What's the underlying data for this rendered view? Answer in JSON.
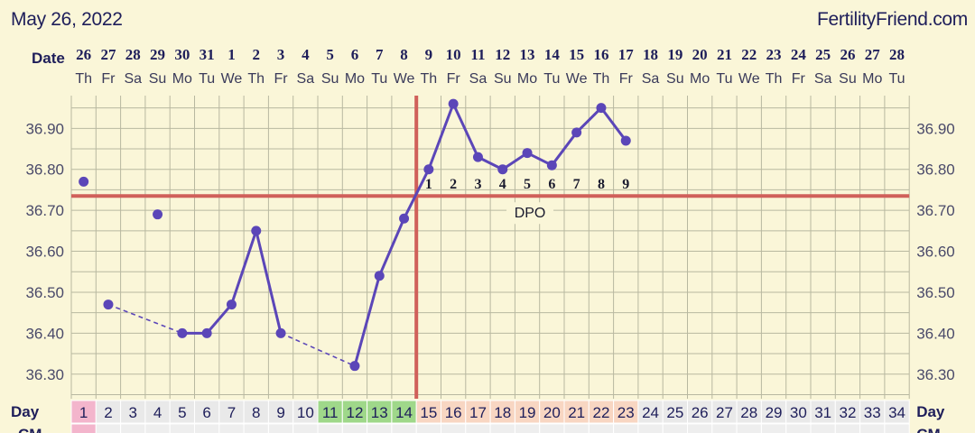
{
  "header": {
    "date": "May 26, 2022",
    "brand": "FertilityFriend.com"
  },
  "chart_data": {
    "type": "line",
    "row_labels": {
      "date": "Date",
      "day": "Day",
      "bottom": "CM"
    },
    "dates": [
      "26",
      "27",
      "28",
      "29",
      "30",
      "31",
      "1",
      "2",
      "3",
      "4",
      "5",
      "6",
      "7",
      "8",
      "9",
      "10",
      "11",
      "12",
      "13",
      "14",
      "15",
      "16",
      "17",
      "18",
      "19",
      "20",
      "21",
      "22",
      "23",
      "24",
      "25",
      "26",
      "27",
      "28"
    ],
    "weekdays": [
      "Th",
      "Fr",
      "Sa",
      "Su",
      "Mo",
      "Tu",
      "We",
      "Th",
      "Fr",
      "Sa",
      "Su",
      "Mo",
      "Tu",
      "We",
      "Th",
      "Fr",
      "Sa",
      "Su",
      "Mo",
      "Tu",
      "We",
      "Th",
      "Fr",
      "Sa",
      "Su",
      "Mo",
      "Tu",
      "We",
      "Th",
      "Fr",
      "Sa",
      "Su",
      "Mo",
      "Tu"
    ],
    "cycle_days": [
      1,
      2,
      3,
      4,
      5,
      6,
      7,
      8,
      9,
      10,
      11,
      12,
      13,
      14,
      15,
      16,
      17,
      18,
      19,
      20,
      21,
      22,
      23,
      24,
      25,
      26,
      27,
      28,
      29,
      30,
      31,
      32,
      33,
      34
    ],
    "day_colors": {
      "period": [
        1
      ],
      "fertile": [
        11,
        12,
        13,
        14
      ],
      "luteal": [
        15,
        16,
        17,
        18,
        19,
        20,
        21,
        22,
        23
      ]
    },
    "y_ticks": [
      "36.90",
      "36.80",
      "36.70",
      "36.60",
      "36.50",
      "36.40",
      "36.30"
    ],
    "ylim": [
      36.24,
      36.98
    ],
    "temperatures": [
      {
        "day": 1,
        "temp": 36.77,
        "discarded": true
      },
      {
        "day": 2,
        "temp": 36.47
      },
      {
        "day": 4,
        "temp": 36.69,
        "discarded": true
      },
      {
        "day": 5,
        "temp": 36.4
      },
      {
        "day": 6,
        "temp": 36.4
      },
      {
        "day": 7,
        "temp": 36.47
      },
      {
        "day": 8,
        "temp": 36.65
      },
      {
        "day": 9,
        "temp": 36.4
      },
      {
        "day": 12,
        "temp": 36.32
      },
      {
        "day": 13,
        "temp": 36.54
      },
      {
        "day": 14,
        "temp": 36.68
      },
      {
        "day": 15,
        "temp": 36.8
      },
      {
        "day": 16,
        "temp": 36.96
      },
      {
        "day": 17,
        "temp": 36.83
      },
      {
        "day": 18,
        "temp": 36.8
      },
      {
        "day": 19,
        "temp": 36.84
      },
      {
        "day": 20,
        "temp": 36.81
      },
      {
        "day": 21,
        "temp": 36.89
      },
      {
        "day": 22,
        "temp": 36.95
      },
      {
        "day": 23,
        "temp": 36.87
      }
    ],
    "dashed_segments": [
      [
        2,
        5
      ],
      [
        9,
        12
      ]
    ],
    "coverline": 36.735,
    "ovulation_day": 14,
    "dpo_start_day": 15,
    "dpo_numbers": [
      "1",
      "2",
      "3",
      "4",
      "5",
      "6",
      "7",
      "8",
      "9"
    ],
    "dpo_label": "DPO",
    "colors": {
      "line": "#5b46b8",
      "coverline": "#d0605a",
      "grid": "#b8b8a0",
      "text": "#1e1e5a",
      "period": "#f3b5cc",
      "fertile": "#9fd88a",
      "luteal": "#f8d6c2",
      "normal_cell": "#e9e9e9"
    }
  }
}
